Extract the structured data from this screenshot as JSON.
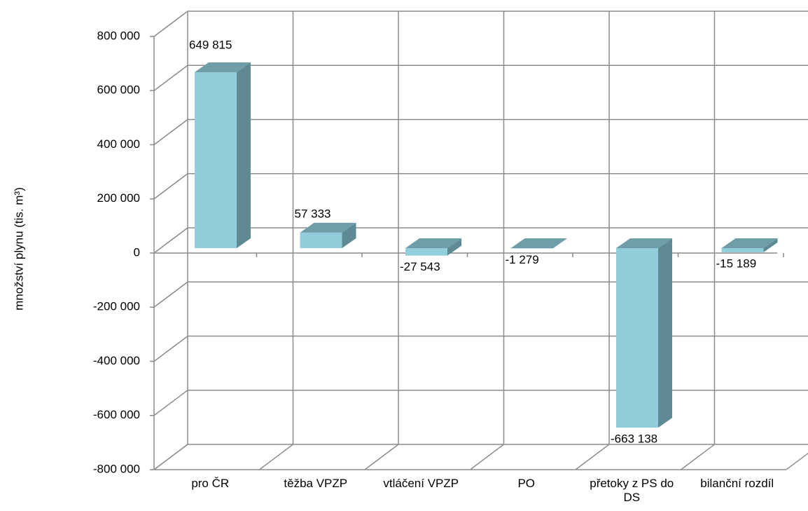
{
  "chart_data": {
    "type": "bar3d",
    "y_label": "množství plynu (tis. m³)",
    "categories": [
      "pro ČR",
      "těžba VPZP",
      "vtláčení VPZP",
      "PO",
      "přetoky z PS do DS",
      "bilanční rozdíl"
    ],
    "values": [
      649815,
      57333,
      -27543,
      -1279,
      -663138,
      -15189
    ],
    "value_labels": [
      "649 815",
      "57 333",
      "-27 543",
      "-1 279",
      "-663 138",
      "-15 189"
    ],
    "color": "#92cddc",
    "ylim": [
      -800000,
      800000
    ],
    "yticks": [
      {
        "value": -800000,
        "label": "-800 000"
      },
      {
        "value": -600000,
        "label": "-600 000"
      },
      {
        "value": -400000,
        "label": "-400 000"
      },
      {
        "value": -200000,
        "label": "-200 000"
      },
      0,
      {
        "value": 200000,
        "label": "200 000"
      },
      {
        "value": 400000,
        "label": "400 000"
      },
      {
        "value": 600000,
        "label": "600 000"
      },
      {
        "value": 800000,
        "label": "800 000"
      }
    ],
    "grid": true
  }
}
